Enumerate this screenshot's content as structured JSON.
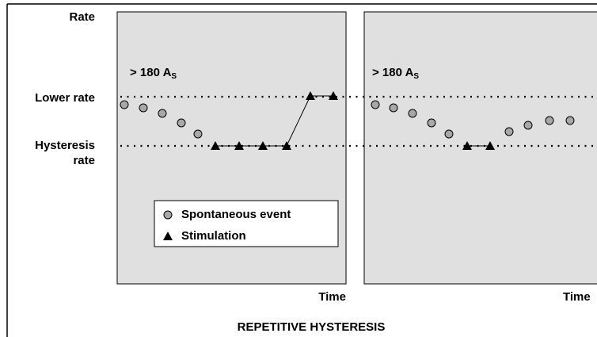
{
  "axis": {
    "y_label": "Rate",
    "lower_rate": "Lower rate",
    "hysteresis_rate": [
      "Hysteresis",
      "rate"
    ]
  },
  "panels": [
    {
      "threshold": "> 180 A",
      "threshold_sub": "S",
      "x_label": "Time"
    },
    {
      "threshold": "> 180 A",
      "threshold_sub": "S",
      "x_label": "Time"
    }
  ],
  "legend": {
    "spontaneous": "Spontaneous event",
    "stimulation": "Stimulation"
  },
  "caption": "REPETITIVE HYSTERESIS"
}
